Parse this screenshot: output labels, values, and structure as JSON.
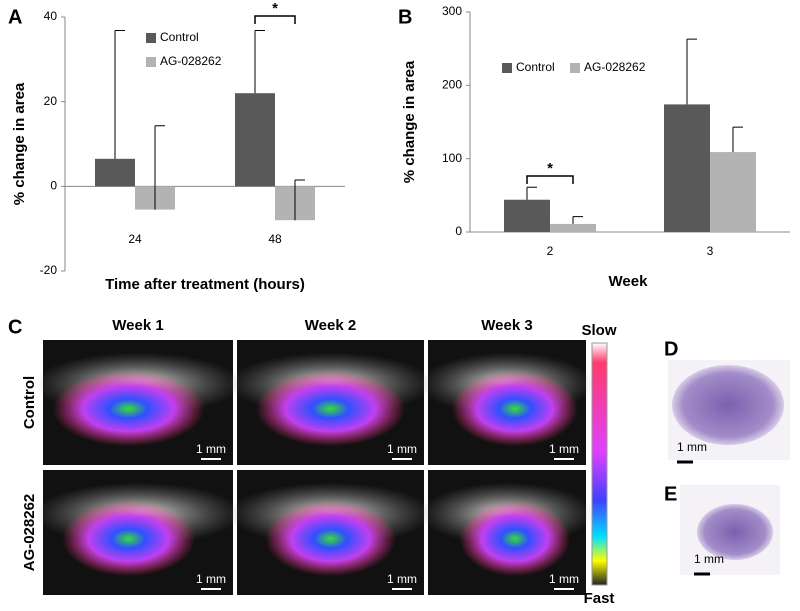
{
  "chart_data": [
    {
      "type": "bar",
      "panel_label": "A",
      "ylabel": "% change in area",
      "xlabel": "Time after treatment (hours)",
      "categories": [
        "24",
        "48"
      ],
      "series": [
        {
          "name": "Control",
          "color": "#595959",
          "values": [
            6.5,
            22
          ],
          "errors": [
            30.3,
            14.8
          ]
        },
        {
          "name": "AG-028262",
          "color": "#b3b3b3",
          "values": [
            -5.5,
            -8
          ],
          "errors": [
            19.8,
            9.5
          ]
        }
      ],
      "ylim": [
        -20,
        40
      ],
      "yticks": [
        -20,
        0,
        20,
        40
      ],
      "annotations": [
        "*"
      ]
    },
    {
      "type": "bar",
      "panel_label": "B",
      "ylabel": "% change in area",
      "xlabel": "Week",
      "categories": [
        "2",
        "3"
      ],
      "series": [
        {
          "name": "Control",
          "color": "#595959",
          "values": [
            44,
            174
          ],
          "errors": [
            17,
            89
          ]
        },
        {
          "name": "AG-028262",
          "color": "#b3b3b3",
          "values": [
            11,
            109
          ],
          "errors": [
            10,
            34
          ]
        }
      ],
      "ylim": [
        0,
        300
      ],
      "yticks": [
        0,
        100,
        200,
        300
      ],
      "annotations": [
        "*"
      ]
    }
  ],
  "panel_c": {
    "label": "C",
    "columns": [
      "Week 1",
      "Week 2",
      "Week 3"
    ],
    "rows": [
      "Control",
      "AG-028262"
    ],
    "scale_bar": "1 mm",
    "colorbar": {
      "top": "Slow",
      "bottom": "Fast"
    }
  },
  "panel_d": {
    "label": "D",
    "scale_bar": "1 mm"
  },
  "panel_e": {
    "label": "E",
    "scale_bar": "1 mm"
  }
}
